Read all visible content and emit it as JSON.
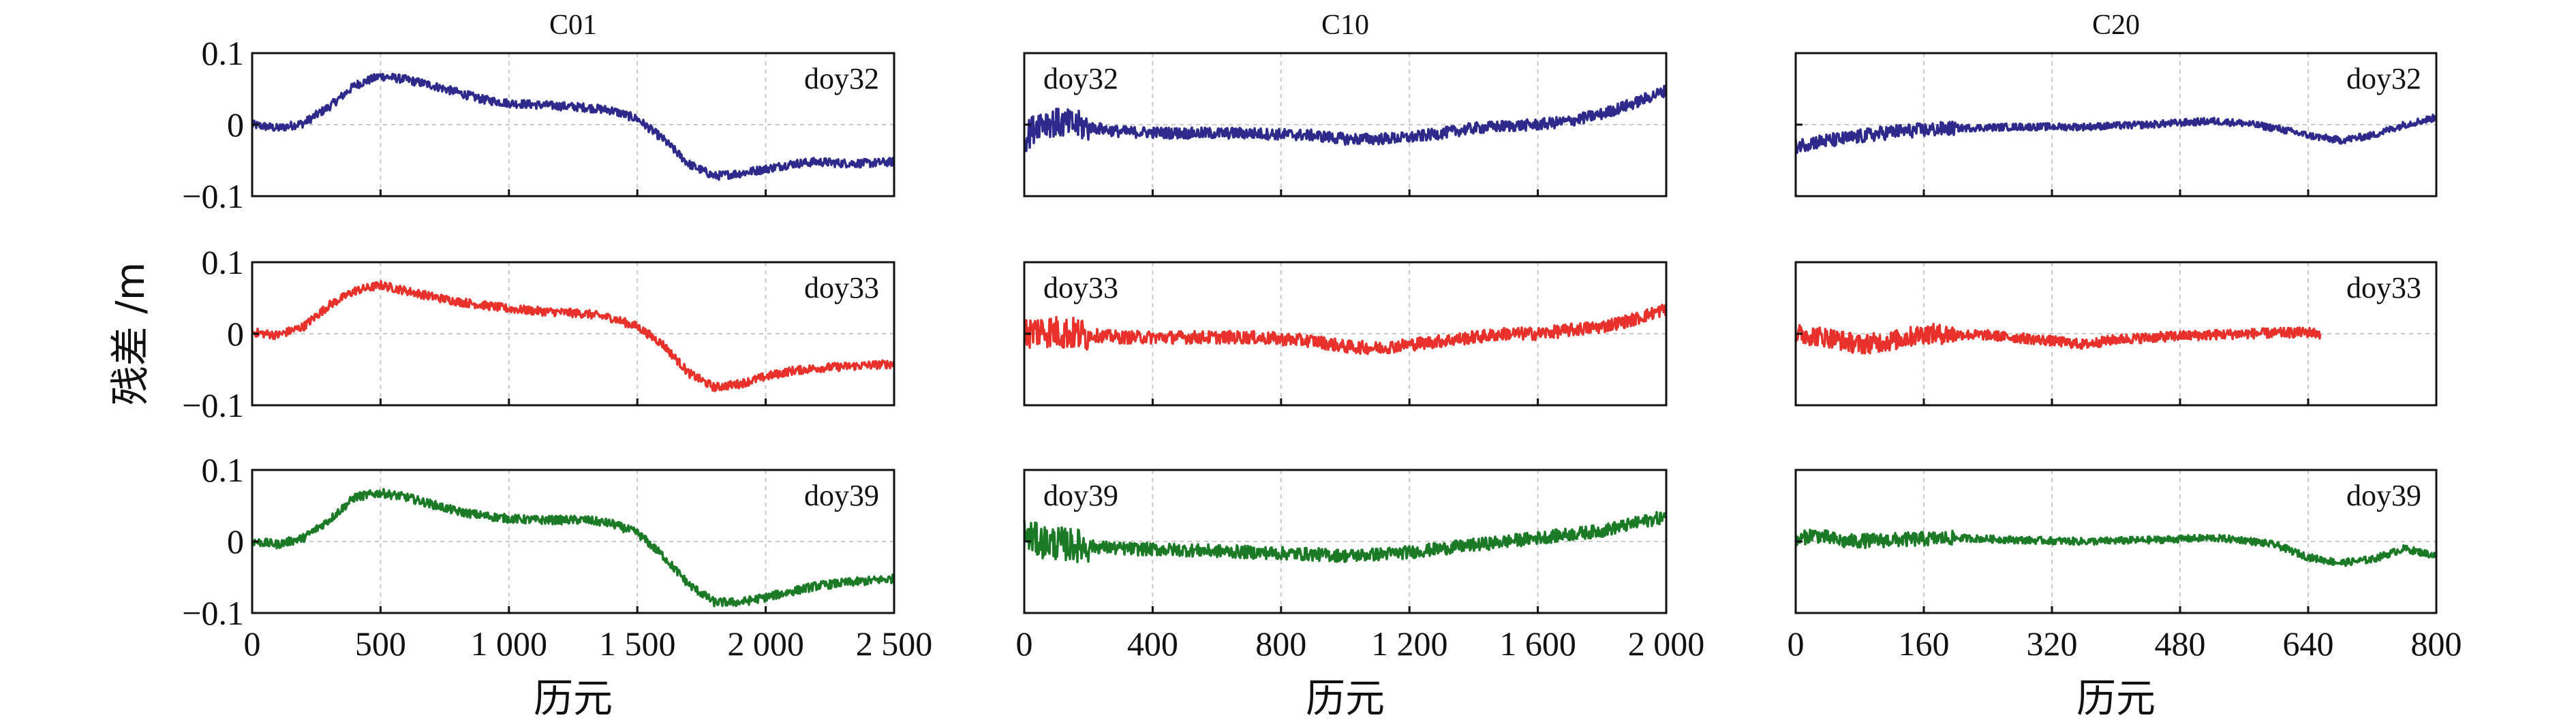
{
  "figure": {
    "ylabel": "残差 /m",
    "y_ticks": [
      {
        "v": 0.1,
        "label": "0.1"
      },
      {
        "v": 0,
        "label": "0"
      },
      {
        "v": -0.1,
        "label": "−0.1"
      }
    ],
    "ylim": [
      -0.1,
      0.1
    ],
    "colors": {
      "doy32": "#2e2a8c",
      "doy33": "#e8312a",
      "doy39": "#1b7a26"
    }
  },
  "chart_data": [
    {
      "type": "line",
      "title": "C01",
      "xlabel": "历元",
      "xlim": [
        0,
        2500
      ],
      "x_ticks": [
        {
          "v": 0,
          "label": "0"
        },
        {
          "v": 500,
          "label": "500"
        },
        {
          "v": 1000,
          "label": "1 000"
        },
        {
          "v": 1500,
          "label": "1 500"
        },
        {
          "v": 2000,
          "label": "2 000"
        },
        {
          "v": 2500,
          "label": "2 500"
        }
      ],
      "ylim": [
        -0.1,
        0.1
      ],
      "series": [
        {
          "name": "doy32",
          "label": "doy32",
          "label_pos": "right",
          "noise": 0.006,
          "x": [
            0,
            100,
            200,
            300,
            400,
            500,
            600,
            700,
            800,
            900,
            1000,
            1100,
            1200,
            1300,
            1400,
            1500,
            1600,
            1700,
            1800,
            1900,
            2000,
            2100,
            2200,
            2300,
            2400,
            2500
          ],
          "y": [
            0,
            -0.005,
            0.002,
            0.025,
            0.055,
            0.068,
            0.063,
            0.055,
            0.045,
            0.035,
            0.03,
            0.028,
            0.026,
            0.024,
            0.02,
            0.008,
            -0.02,
            -0.055,
            -0.072,
            -0.068,
            -0.062,
            -0.055,
            -0.052,
            -0.054,
            -0.054,
            -0.052
          ]
        },
        {
          "name": "doy33",
          "label": "doy33",
          "label_pos": "right",
          "noise": 0.006,
          "x": [
            0,
            100,
            200,
            300,
            400,
            500,
            600,
            700,
            800,
            900,
            1000,
            1100,
            1200,
            1300,
            1400,
            1500,
            1600,
            1700,
            1800,
            1900,
            2000,
            2100,
            2200,
            2300,
            2400,
            2500
          ],
          "y": [
            0.002,
            -0.002,
            0.01,
            0.04,
            0.06,
            0.068,
            0.06,
            0.052,
            0.045,
            0.04,
            0.035,
            0.032,
            0.03,
            0.028,
            0.022,
            0.01,
            -0.015,
            -0.055,
            -0.075,
            -0.07,
            -0.06,
            -0.052,
            -0.048,
            -0.046,
            -0.044,
            -0.042
          ]
        },
        {
          "name": "doy39",
          "label": "doy39",
          "label_pos": "right",
          "noise": 0.006,
          "x": [
            0,
            100,
            200,
            300,
            400,
            500,
            600,
            700,
            800,
            900,
            1000,
            1100,
            1200,
            1300,
            1400,
            1500,
            1600,
            1700,
            1800,
            1900,
            2000,
            2100,
            2200,
            2300,
            2400,
            2500
          ],
          "y": [
            0,
            -0.004,
            0.005,
            0.03,
            0.062,
            0.068,
            0.062,
            0.052,
            0.042,
            0.036,
            0.032,
            0.03,
            0.03,
            0.03,
            0.025,
            0.012,
            -0.02,
            -0.06,
            -0.085,
            -0.085,
            -0.078,
            -0.07,
            -0.062,
            -0.058,
            -0.055,
            -0.052
          ]
        }
      ]
    },
    {
      "type": "line",
      "title": "C10",
      "xlabel": "历元",
      "xlim": [
        0,
        2000
      ],
      "x_ticks": [
        {
          "v": 0,
          "label": "0"
        },
        {
          "v": 400,
          "label": "400"
        },
        {
          "v": 800,
          "label": "800"
        },
        {
          "v": 1200,
          "label": "1 200"
        },
        {
          "v": 1600,
          "label": "1 600"
        },
        {
          "v": 2000,
          "label": "2 000"
        }
      ],
      "ylim": [
        -0.1,
        0.1
      ],
      "series": [
        {
          "name": "doy32",
          "label": "doy32",
          "label_pos": "left",
          "noise": 0.008,
          "x": [
            0,
            50,
            150,
            300,
            500,
            700,
            900,
            1000,
            1100,
            1200,
            1300,
            1400,
            1500,
            1600,
            1700,
            1800,
            1900,
            2000
          ],
          "y": [
            -0.02,
            0.005,
            0.0,
            -0.01,
            -0.012,
            -0.012,
            -0.015,
            -0.02,
            -0.02,
            -0.018,
            -0.012,
            -0.005,
            -0.002,
            0.0,
            0.005,
            0.015,
            0.03,
            0.048
          ]
        },
        {
          "name": "doy33",
          "label": "doy33",
          "label_pos": "left",
          "noise": 0.009,
          "x": [
            0,
            50,
            150,
            300,
            500,
            700,
            900,
            1000,
            1100,
            1200,
            1300,
            1400,
            1500,
            1600,
            1700,
            1800,
            1900,
            2000
          ],
          "y": [
            0.0,
            0.005,
            0.0,
            -0.005,
            -0.005,
            -0.005,
            -0.01,
            -0.018,
            -0.02,
            -0.015,
            -0.01,
            -0.005,
            0.0,
            0.0,
            0.005,
            0.01,
            0.02,
            0.035
          ]
        },
        {
          "name": "doy39",
          "label": "doy39",
          "label_pos": "left",
          "noise": 0.009,
          "x": [
            0,
            50,
            150,
            300,
            500,
            700,
            900,
            1000,
            1100,
            1200,
            1300,
            1400,
            1500,
            1600,
            1700,
            1800,
            1900,
            2000
          ],
          "y": [
            0.01,
            0.0,
            -0.005,
            -0.01,
            -0.012,
            -0.015,
            -0.018,
            -0.02,
            -0.018,
            -0.015,
            -0.01,
            -0.005,
            0.0,
            0.005,
            0.01,
            0.015,
            0.025,
            0.035
          ]
        }
      ]
    },
    {
      "type": "line",
      "title": "C20",
      "xlabel": "历元",
      "xlim": [
        0,
        800
      ],
      "x_ticks": [
        {
          "v": 0,
          "label": "0"
        },
        {
          "v": 160,
          "label": "160"
        },
        {
          "v": 320,
          "label": "320"
        },
        {
          "v": 480,
          "label": "480"
        },
        {
          "v": 640,
          "label": "640"
        },
        {
          "v": 800,
          "label": "800"
        }
      ],
      "ylim": [
        -0.1,
        0.1
      ],
      "series": [
        {
          "name": "doy32",
          "label": "doy32",
          "label_pos": "right",
          "noise": 0.005,
          "x": [
            0,
            20,
            60,
            120,
            200,
            280,
            360,
            440,
            520,
            560,
            600,
            640,
            680,
            720,
            760,
            800
          ],
          "y": [
            -0.03,
            -0.025,
            -0.02,
            -0.01,
            -0.005,
            -0.003,
            -0.003,
            0.0,
            0.005,
            0.002,
            -0.005,
            -0.015,
            -0.022,
            -0.015,
            0.0,
            0.01
          ]
        },
        {
          "name": "doy33",
          "label": "doy33",
          "label_pos": "right",
          "noise": 0.007,
          "x": [
            0,
            40,
            80,
            120,
            160,
            240,
            320,
            360,
            400,
            480,
            560,
            640,
            655
          ],
          "y": [
            0.0,
            -0.005,
            -0.015,
            -0.01,
            0.0,
            -0.002,
            -0.01,
            -0.015,
            -0.008,
            -0.003,
            0.0,
            0.002,
            0.0
          ]
        },
        {
          "name": "doy39",
          "label": "doy39",
          "label_pos": "right",
          "noise": 0.005,
          "x": [
            0,
            20,
            60,
            120,
            200,
            280,
            360,
            440,
            520,
            560,
            600,
            640,
            680,
            720,
            760,
            800
          ],
          "y": [
            0.0,
            0.01,
            0.0,
            0.002,
            0.005,
            0.002,
            0.0,
            0.002,
            0.005,
            0.002,
            -0.005,
            -0.022,
            -0.03,
            -0.025,
            -0.01,
            -0.02
          ]
        }
      ]
    }
  ]
}
